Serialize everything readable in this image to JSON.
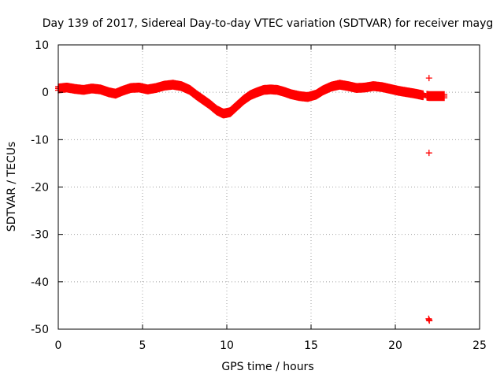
{
  "chart_data": {
    "type": "scatter",
    "title": "Day 139 of 2017, Sidereal Day-to-day VTEC variation (SDTVAR) for receiver mayg",
    "xlabel": "GPS time / hours",
    "ylabel": "SDTVAR / TECUs",
    "xlim": [
      0,
      25
    ],
    "ylim": [
      -50,
      10
    ],
    "x_ticks": [
      0,
      5,
      10,
      15,
      20,
      25
    ],
    "y_ticks": [
      -50,
      -40,
      -30,
      -20,
      -10,
      0,
      10
    ],
    "x_tick_labels": [
      "0",
      "5",
      "10",
      "15",
      "20",
      "25"
    ],
    "y_tick_labels": [
      "-50",
      "-40",
      "-30",
      "-20",
      "-10",
      "0",
      "10"
    ],
    "grid": true,
    "marker": "+",
    "series_color": "#ff0000",
    "series": [
      {
        "name": "SDTVAR",
        "trend": [
          [
            0.0,
            0.8
          ],
          [
            0.5,
            1.0
          ],
          [
            1.0,
            0.7
          ],
          [
            1.5,
            0.5
          ],
          [
            2.0,
            0.8
          ],
          [
            2.5,
            0.6
          ],
          [
            3.0,
            0.0
          ],
          [
            3.4,
            -0.3
          ],
          [
            3.8,
            0.3
          ],
          [
            4.3,
            0.9
          ],
          [
            4.8,
            1.0
          ],
          [
            5.3,
            0.6
          ],
          [
            5.8,
            0.9
          ],
          [
            6.3,
            1.4
          ],
          [
            6.8,
            1.6
          ],
          [
            7.3,
            1.3
          ],
          [
            7.8,
            0.5
          ],
          [
            8.2,
            -0.6
          ],
          [
            8.6,
            -1.6
          ],
          [
            9.0,
            -2.6
          ],
          [
            9.4,
            -3.8
          ],
          [
            9.8,
            -4.5
          ],
          [
            10.2,
            -4.2
          ],
          [
            10.6,
            -2.9
          ],
          [
            11.0,
            -1.6
          ],
          [
            11.4,
            -0.6
          ],
          [
            11.8,
            0.0
          ],
          [
            12.2,
            0.5
          ],
          [
            12.6,
            0.6
          ],
          [
            13.0,
            0.5
          ],
          [
            13.4,
            0.1
          ],
          [
            13.8,
            -0.4
          ],
          [
            14.3,
            -0.8
          ],
          [
            14.8,
            -1.0
          ],
          [
            15.3,
            -0.5
          ],
          [
            15.7,
            0.4
          ],
          [
            16.2,
            1.2
          ],
          [
            16.7,
            1.6
          ],
          [
            17.2,
            1.3
          ],
          [
            17.7,
            0.9
          ],
          [
            18.2,
            1.0
          ],
          [
            18.7,
            1.3
          ],
          [
            19.2,
            1.1
          ],
          [
            19.7,
            0.7
          ],
          [
            20.2,
            0.3
          ],
          [
            20.7,
            0.0
          ],
          [
            21.2,
            -0.3
          ],
          [
            21.6,
            -0.6
          ],
          [
            22.0,
            -0.8
          ],
          [
            22.5,
            -0.8
          ],
          [
            22.9,
            -0.8
          ]
        ],
        "gap_hours": [
          21.65,
          21.85
        ],
        "outliers": [
          [
            22.0,
            3.0
          ],
          [
            22.0,
            -12.8
          ],
          [
            21.98,
            -47.8
          ],
          [
            22.02,
            -48.2
          ],
          [
            22.0,
            -48.0
          ]
        ]
      }
    ]
  }
}
